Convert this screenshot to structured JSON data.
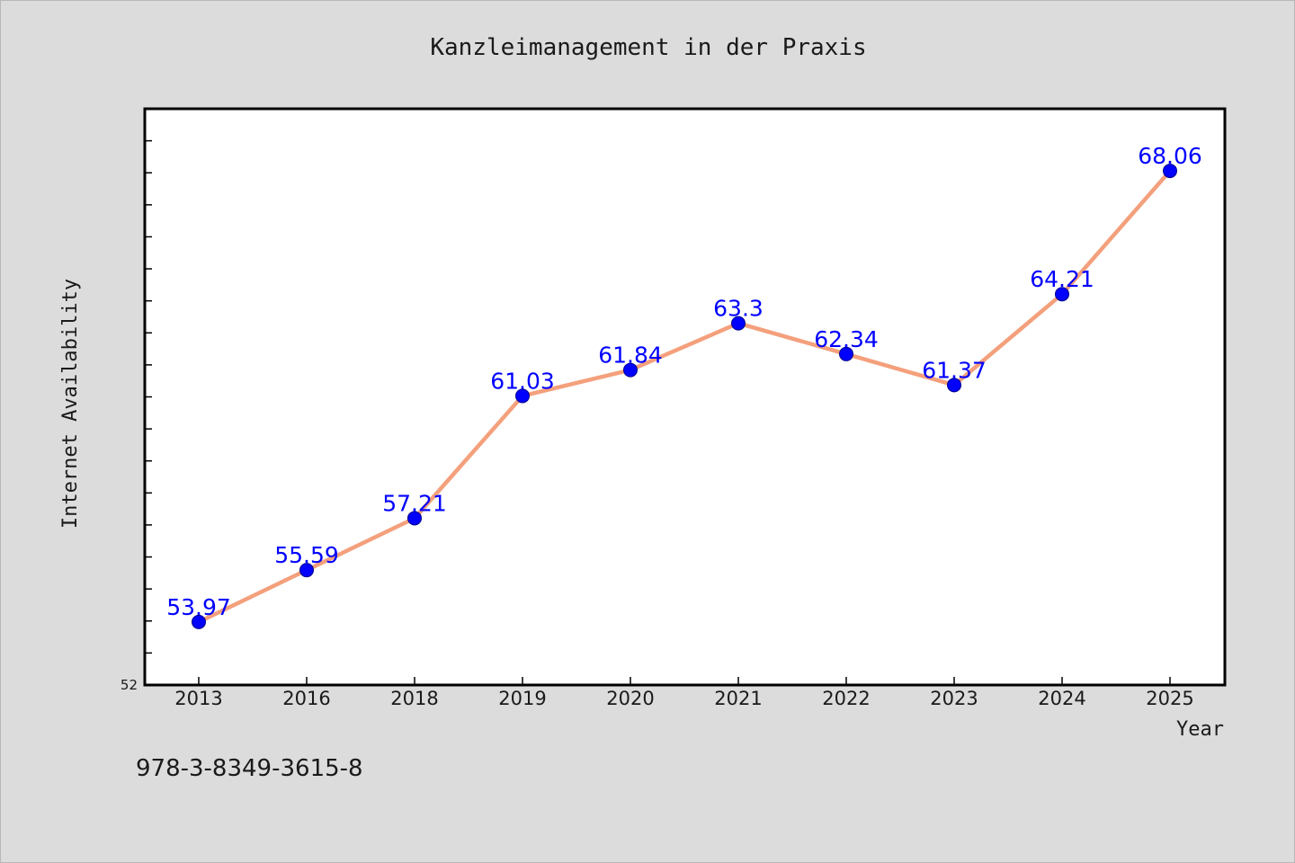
{
  "chart_data": {
    "type": "line",
    "title": "Kanzleimanagement in der Praxis",
    "xlabel": "Year",
    "ylabel": "Internet Availability",
    "categories": [
      "2013",
      "2016",
      "2018",
      "2019",
      "2020",
      "2021",
      "2022",
      "2023",
      "2024",
      "2025"
    ],
    "series": [
      {
        "values": [
          53.97,
          55.59,
          57.21,
          61.03,
          61.84,
          63.3,
          62.34,
          61.37,
          64.21,
          68.06
        ],
        "data_labels": [
          "53.97",
          "55.59",
          "57.21",
          "61.03",
          "61.84",
          "63.3",
          "62.34",
          "61.37",
          "64.21",
          "68.06"
        ],
        "line_color": "#f4a07c",
        "marker_color": "#0000ff"
      }
    ],
    "ylim": [
      52,
      70
    ],
    "y_tick_labels": [
      "52"
    ],
    "grid": false,
    "legend": "none"
  },
  "footer": {
    "isbn": "978-3-8349-3615-8"
  },
  "colors": {
    "background": "#dcdcdc",
    "plot_background": "#ffffff",
    "line": "#f4a07c",
    "marker": "#0000ff",
    "data_label": "#0000ff"
  }
}
